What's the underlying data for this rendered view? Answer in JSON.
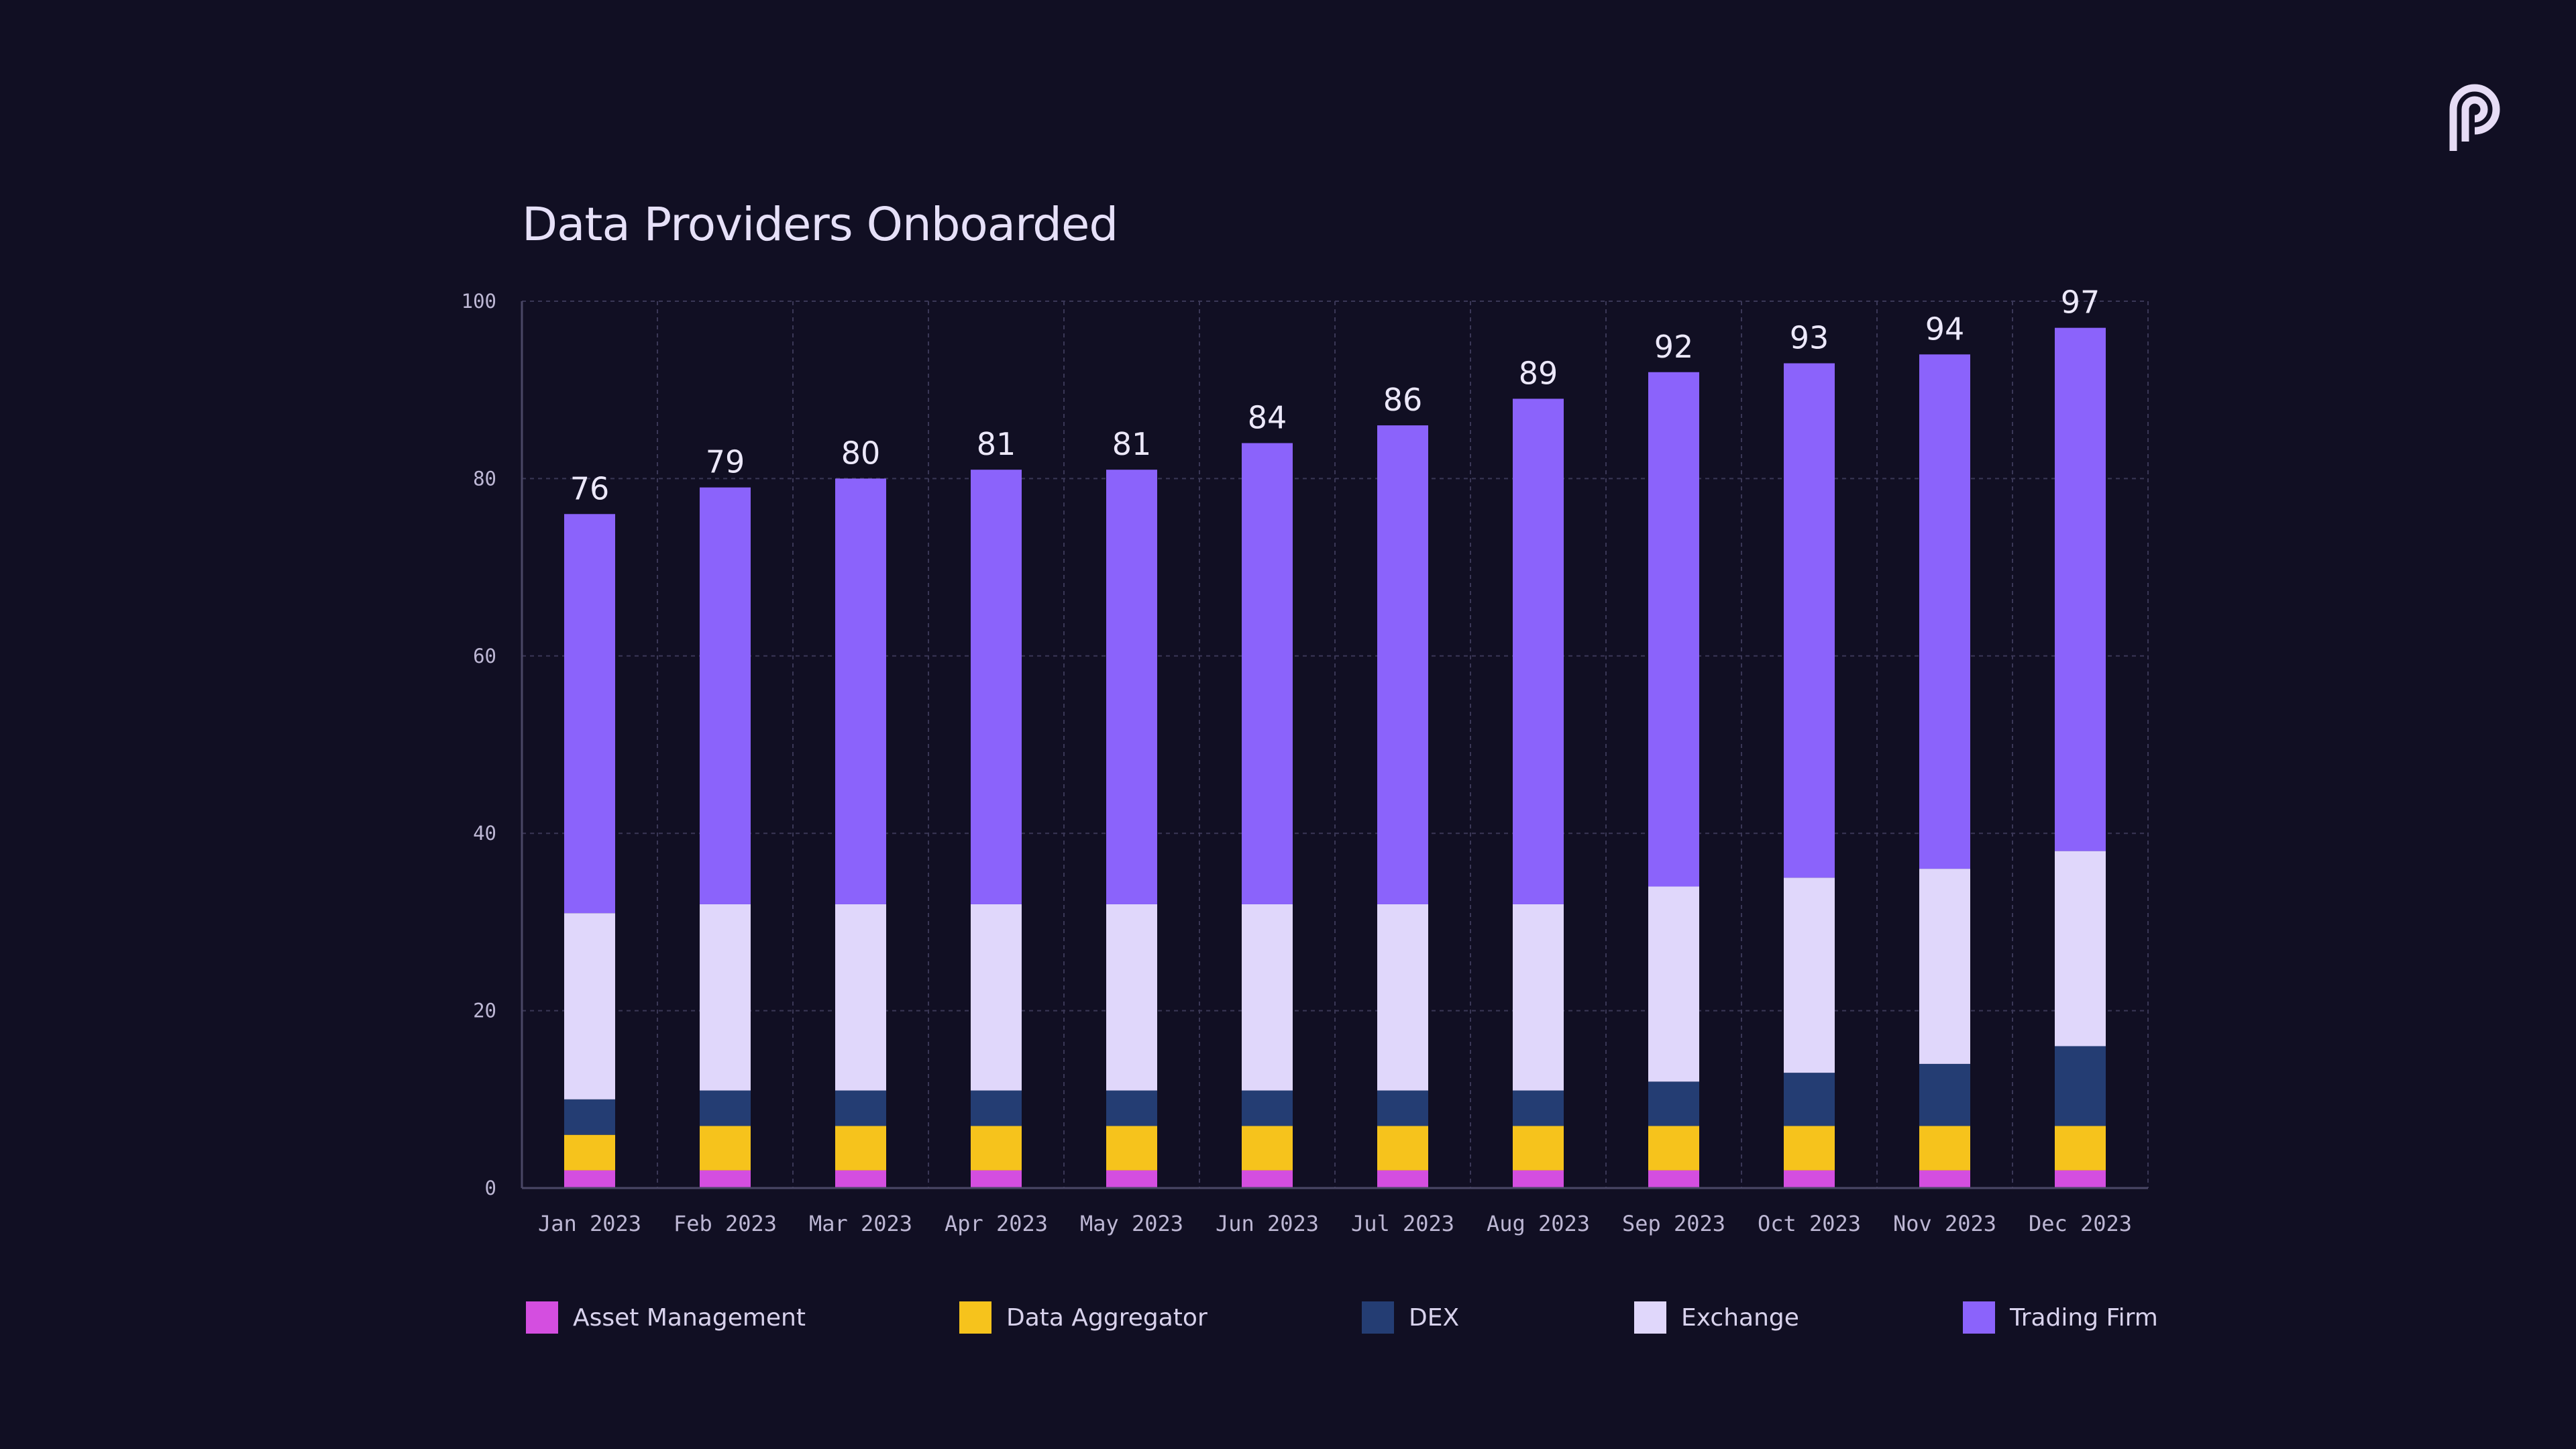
{
  "chart_data": {
    "type": "bar",
    "stacked": true,
    "title": "Data Providers Onboarded",
    "categories": [
      "Jan 2023",
      "Feb 2023",
      "Mar 2023",
      "Apr 2023",
      "May 2023",
      "Jun 2023",
      "Jul 2023",
      "Aug 2023",
      "Sep 2023",
      "Oct 2023",
      "Nov 2023",
      "Dec 2023"
    ],
    "series": [
      {
        "name": "Asset Management",
        "color": "#d44ee0",
        "values": [
          2,
          2,
          2,
          2,
          2,
          2,
          2,
          2,
          2,
          2,
          2,
          2
        ]
      },
      {
        "name": "Data Aggregator",
        "color": "#f6c31c",
        "values": [
          4,
          5,
          5,
          5,
          5,
          5,
          5,
          5,
          5,
          5,
          5,
          5
        ]
      },
      {
        "name": "DEX",
        "color": "#243d73",
        "values": [
          4,
          4,
          4,
          4,
          4,
          4,
          4,
          4,
          5,
          6,
          7,
          9
        ]
      },
      {
        "name": "Exchange",
        "color": "#e0d7fb",
        "values": [
          21,
          21,
          21,
          21,
          21,
          21,
          21,
          21,
          22,
          22,
          22,
          22
        ]
      },
      {
        "name": "Trading Firm",
        "color": "#8b63fb",
        "values": [
          45,
          47,
          48,
          49,
          49,
          52,
          54,
          57,
          58,
          58,
          58,
          59
        ]
      }
    ],
    "totals": [
      "76",
      "79",
      "80",
      "81",
      "81",
      "84",
      "86",
      "89",
      "92",
      "93",
      "94",
      "97"
    ],
    "yticks": [
      "0",
      "20",
      "40",
      "60",
      "80",
      "100"
    ],
    "ylim": [
      0,
      100
    ],
    "grid": true,
    "legend_position": "bottom"
  }
}
